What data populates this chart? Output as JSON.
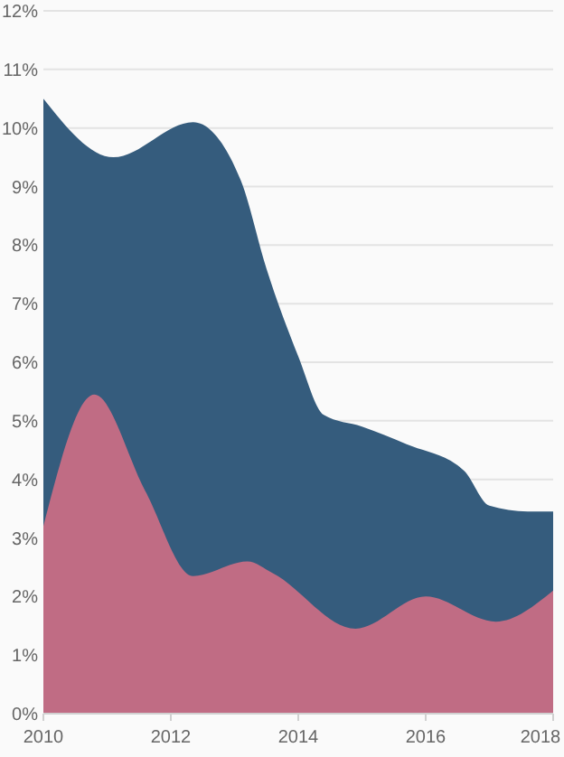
{
  "chart_data": {
    "type": "area",
    "xlim": [
      2010,
      2018
    ],
    "xticks": [
      2010,
      2012,
      2014,
      2016,
      2018
    ],
    "ylim": [
      0,
      12
    ],
    "yticks": [
      {
        "value": 0,
        "label": "0%"
      },
      {
        "value": 1,
        "label": "1%"
      },
      {
        "value": 2,
        "label": "2%"
      },
      {
        "value": 3,
        "label": "3%"
      },
      {
        "value": 4,
        "label": "4%"
      },
      {
        "value": 5,
        "label": "5%"
      },
      {
        "value": 6,
        "label": "6%"
      },
      {
        "value": 7,
        "label": "7%"
      },
      {
        "value": 8,
        "label": "8%"
      },
      {
        "value": 9,
        "label": "9%"
      },
      {
        "value": 10,
        "label": "10%"
      },
      {
        "value": 11,
        "label": "11%"
      },
      {
        "value": 12,
        "label": "12%"
      }
    ],
    "grid": "y",
    "series": [
      {
        "color": "#355c7d",
        "x": [
          2010,
          2011.1,
          2012.35,
          2013.1,
          2013.5,
          2014,
          2014.4,
          2015,
          2015.7,
          2016.6,
          2017,
          2017.6,
          2018
        ],
        "values": [
          10.5,
          9.5,
          10.1,
          9.1,
          7.6,
          6.1,
          5.1,
          4.9,
          4.6,
          4.15,
          3.55,
          3.45,
          3.45
        ]
      },
      {
        "color": "#c06c84",
        "x": [
          2010,
          2010.8,
          2011.6,
          2012.35,
          2013.2,
          2013.6,
          2014.9,
          2016,
          2017.1,
          2018
        ],
        "values": [
          3.2,
          5.45,
          3.8,
          2.35,
          2.6,
          2.4,
          1.45,
          2.0,
          1.57,
          2.1
        ]
      }
    ]
  }
}
